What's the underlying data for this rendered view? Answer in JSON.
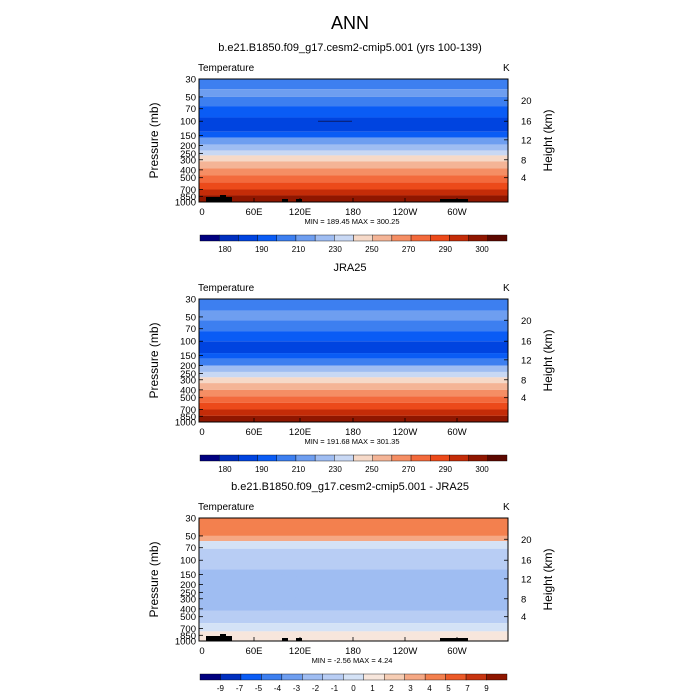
{
  "figure_title": "ANN",
  "colors": {
    "abs": [
      "#00007f",
      "#002fbf",
      "#0044e0",
      "#0a5cf5",
      "#3d7ff0",
      "#6e9ef0",
      "#9fbdf2",
      "#c8d8f4",
      "#f6d9c8",
      "#f4b496",
      "#f58e64",
      "#f36a3c",
      "#ec4a1a",
      "#c42c08",
      "#8f1600",
      "#5c0800"
    ],
    "diff": [
      "#00007f",
      "#002fbf",
      "#0a5cf5",
      "#3d7ff0",
      "#6e9ef0",
      "#9fbdf2",
      "#b8cdf4",
      "#d4e2f6",
      "#f7e6dc",
      "#f6cdb4",
      "#f5a884",
      "#f3804e",
      "#ec5a28",
      "#c83510",
      "#8f1600"
    ]
  },
  "chart_data": [
    {
      "type": "heatmap",
      "title": "b.e21.B1850.f09_g17.cesm2-cmip5.001 (yrs 100-139)",
      "var_label": "Temperature",
      "unit_label": "K",
      "ylabel": "Pressure (mb)",
      "y2label": "Height (km)",
      "xticks": [
        "0",
        "60E",
        "120E",
        "180",
        "120W",
        "60W"
      ],
      "yticks": [
        "30",
        "50",
        "70",
        "100",
        "150",
        "200",
        "250",
        "300",
        "400",
        "500",
        "700",
        "850",
        "1000"
      ],
      "y2ticks": [
        "20",
        "16",
        "12",
        "8",
        "4"
      ],
      "stats": "MIN = 189.45   MAX = 300.25",
      "min": 189.45,
      "max": 300.25,
      "ylim": [
        1000,
        30
      ],
      "colorbar_labels": [
        "180",
        "190",
        "210",
        "230",
        "250",
        "270",
        "290",
        "300"
      ],
      "palette": "abs"
    },
    {
      "type": "heatmap",
      "title": "JRA25",
      "var_label": "Temperature",
      "unit_label": "K",
      "ylabel": "Pressure (mb)",
      "y2label": "Height (km)",
      "xticks": [
        "0",
        "60E",
        "120E",
        "180",
        "120W",
        "60W"
      ],
      "yticks": [
        "30",
        "50",
        "70",
        "100",
        "150",
        "200",
        "250",
        "300",
        "400",
        "500",
        "700",
        "850",
        "1000"
      ],
      "y2ticks": [
        "20",
        "16",
        "12",
        "8",
        "4"
      ],
      "stats": "MIN = 191.68   MAX = 301.35",
      "min": 191.68,
      "max": 301.35,
      "ylim": [
        1000,
        30
      ],
      "colorbar_labels": [
        "180",
        "190",
        "210",
        "230",
        "250",
        "270",
        "290",
        "300"
      ],
      "palette": "abs"
    },
    {
      "type": "heatmap",
      "title": "b.e21.B1850.f09_g17.cesm2-cmip5.001 - JRA25",
      "var_label": "Temperature",
      "unit_label": "K",
      "ylabel": "Pressure (mb)",
      "y2label": "Height (km)",
      "xticks": [
        "0",
        "60E",
        "120E",
        "180",
        "120W",
        "60W"
      ],
      "yticks": [
        "30",
        "50",
        "70",
        "100",
        "150",
        "200",
        "250",
        "300",
        "400",
        "500",
        "700",
        "850",
        "1000"
      ],
      "y2ticks": [
        "20",
        "16",
        "12",
        "8",
        "4"
      ],
      "stats": "MIN = -2.56   MAX = 4.24",
      "min": -2.56,
      "max": 4.24,
      "ylim": [
        1000,
        30
      ],
      "colorbar_labels": [
        "-9",
        "-7",
        "-5",
        "-4",
        "-3",
        "-2",
        "-1",
        "0",
        "1",
        "2",
        "3",
        "4",
        "5",
        "7",
        "9"
      ],
      "palette": "diff"
    }
  ]
}
